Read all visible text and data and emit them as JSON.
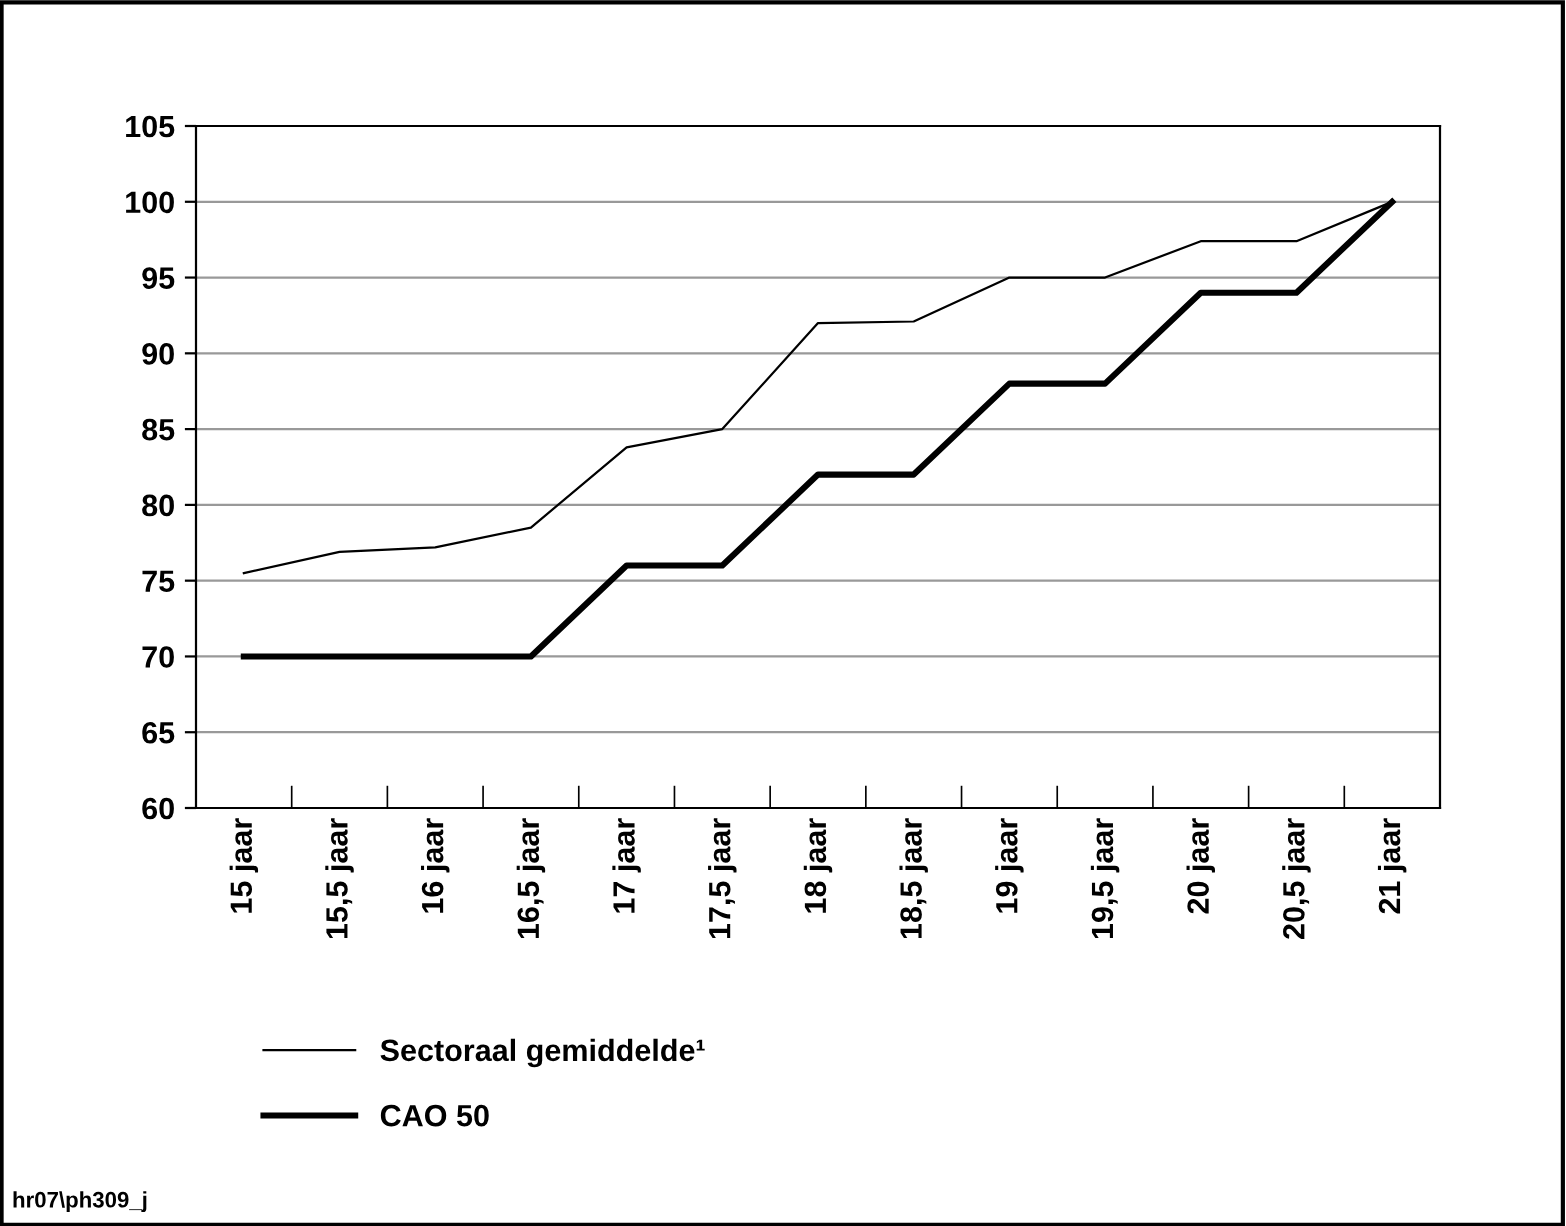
{
  "chart_data": {
    "type": "line",
    "categories": [
      "15 jaar",
      "15,5 jaar",
      "16 jaar",
      "16,5 jaar",
      "17 jaar",
      "17,5 jaar",
      "18 jaar",
      "18,5 jaar",
      "19 jaar",
      "19,5 jaar",
      "20 jaar",
      "20,5 jaar",
      "21 jaar"
    ],
    "series": [
      {
        "name": "Sectoraal gemiddelde¹",
        "color": "#000000",
        "values": [
          75.5,
          76.9,
          77.2,
          78.5,
          83.8,
          85,
          92,
          92.1,
          95,
          95,
          97.4,
          97.4,
          100
        ]
      },
      {
        "name": "CAO 50",
        "color": "#000000",
        "values": [
          70,
          70,
          70,
          70,
          76,
          76,
          82,
          82,
          88,
          88,
          94,
          94,
          100
        ]
      }
    ],
    "ylim": [
      60,
      105
    ],
    "yticks": [
      60,
      65,
      70,
      75,
      80,
      85,
      90,
      95,
      100,
      105
    ],
    "grid": "y",
    "legend": "bottom left",
    "marker": "none",
    "line_style": "solid",
    "annotations": [
      "hr07\\ph309_j"
    ]
  }
}
